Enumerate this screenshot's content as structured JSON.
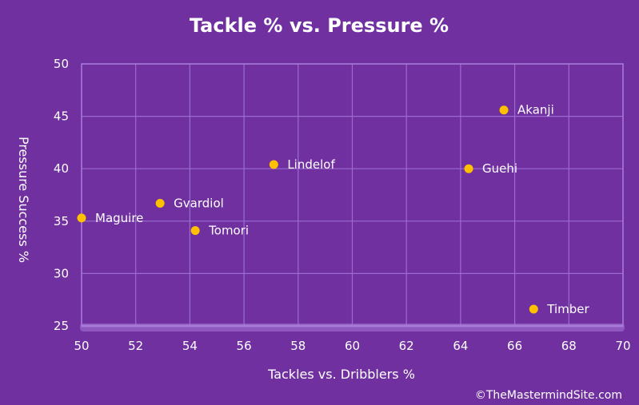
{
  "colors": {
    "background": "#7030a0",
    "plot_background": "#7030a0",
    "grid": "#9b6bd0",
    "plot_border": "#a77ad8",
    "bottom_band": "#a77ad8",
    "marker": "#ffc000",
    "text": "#ffffff"
  },
  "credit": "©TheMastermindSite.com",
  "chart_data": {
    "type": "scatter",
    "title": "Tackle % vs. Pressure %",
    "xlabel": "Tackles vs. Dribblers %",
    "ylabel": "Pressure Success %",
    "xlim": [
      50,
      70
    ],
    "ylim": [
      25,
      50
    ],
    "xticks": [
      50,
      52,
      54,
      56,
      58,
      60,
      62,
      64,
      66,
      68,
      70
    ],
    "yticks": [
      25,
      30,
      35,
      40,
      45,
      50
    ],
    "grid": true,
    "points": [
      {
        "label": "Maguire",
        "x": 50.0,
        "y": 35.3
      },
      {
        "label": "Gvardiol",
        "x": 52.9,
        "y": 36.7
      },
      {
        "label": "Tomori",
        "x": 54.2,
        "y": 34.1
      },
      {
        "label": "Lindelof",
        "x": 57.1,
        "y": 40.4
      },
      {
        "label": "Guehi",
        "x": 64.3,
        "y": 40.0
      },
      {
        "label": "Akanji",
        "x": 65.6,
        "y": 45.6
      },
      {
        "label": "Timber",
        "x": 66.7,
        "y": 26.6
      }
    ]
  }
}
